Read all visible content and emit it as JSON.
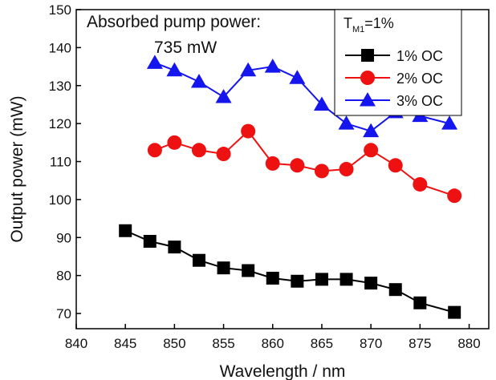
{
  "chart_data": {
    "type": "line",
    "xlabel": "Wavelength / nm",
    "ylabel": "Output power (mW)",
    "xlim": [
      840,
      882
    ],
    "ylim": [
      66,
      150
    ],
    "x_ticks": [
      840,
      845,
      850,
      855,
      860,
      865,
      870,
      875,
      880
    ],
    "y_ticks": [
      70,
      80,
      90,
      100,
      110,
      120,
      130,
      140,
      150
    ],
    "grid": false,
    "annotation": {
      "line1": "Absorbed pump power:",
      "line2": "735 mW"
    },
    "legend": {
      "title_prefix": "T",
      "title_sub": "M1",
      "title_suffix": "=1%",
      "placement": "top-right"
    },
    "series": [
      {
        "name": "1% OC",
        "color": "#000000",
        "marker": "square",
        "x": [
          845,
          847.5,
          850,
          852.5,
          855,
          857.5,
          860,
          862.5,
          865,
          867.5,
          870,
          872.5,
          875,
          878.5
        ],
        "y": [
          91.8,
          89,
          87.5,
          84,
          82,
          81.3,
          79.3,
          78.5,
          79,
          79,
          78,
          76.3,
          72.8,
          70.3
        ]
      },
      {
        "name": "2% OC",
        "color": "#ee1111",
        "marker": "circle",
        "x": [
          848,
          850,
          852.5,
          855,
          857.5,
          860,
          862.5,
          865,
          867.5,
          870,
          872.5,
          875,
          878.5
        ],
        "y": [
          113,
          115,
          113,
          112,
          118,
          109.5,
          109,
          107.5,
          108,
          113,
          109,
          104,
          101
        ]
      },
      {
        "name": "3% OC",
        "color": "#1515ee",
        "marker": "triangle",
        "x": [
          848,
          850,
          852.5,
          855,
          857.5,
          860,
          862.5,
          865,
          867.5,
          870,
          872.5,
          875,
          878
        ],
        "y": [
          136,
          134,
          131,
          127,
          134,
          135,
          132,
          125,
          120,
          118,
          123,
          122,
          120
        ]
      }
    ]
  }
}
